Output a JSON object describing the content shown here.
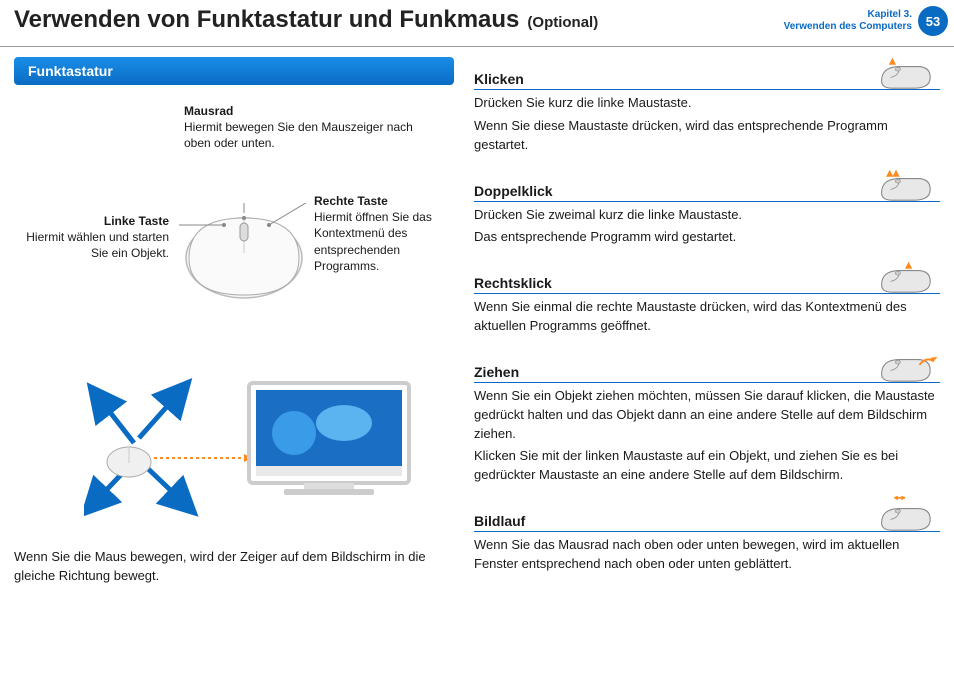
{
  "header": {
    "title": "Verwenden von Funktastatur und Funkmaus",
    "optional": "(Optional)",
    "chapter_line1": "Kapitel 3.",
    "chapter_line2": "Verwenden des Computers",
    "page_number": "53"
  },
  "left": {
    "section_title": "Funktastatur",
    "labels": {
      "mausrad_title": "Mausrad",
      "mausrad_desc": "Hiermit bewegen Sie den Mauszeiger nach oben oder unten.",
      "rechte_title": "Rechte Taste",
      "rechte_desc": "Hiermit öffnen Sie das Kontextmenü des entsprechenden Programms.",
      "linke_title": "Linke Taste",
      "linke_desc": "Hiermit wählen und starten Sie ein Objekt."
    },
    "bottom_text": "Wenn Sie die Maus bewegen, wird der Zeiger auf dem Bildschirm in die gleiche Richtung bewegt."
  },
  "right": {
    "actions": [
      {
        "title": "Klicken",
        "body": [
          "Drücken Sie kurz die linke Maustaste.",
          "Wenn Sie diese Maustaste drücken, wird das entsprechende Programm gestartet."
        ],
        "icon": "click"
      },
      {
        "title": "Doppelklick",
        "body": [
          "Drücken Sie zweimal kurz die linke Maustaste.",
          "Das entsprechende Programm wird gestartet."
        ],
        "icon": "doubleclick"
      },
      {
        "title": "Rechtsklick",
        "body": [
          "Wenn Sie einmal die rechte Maustaste drücken, wird das Kontextmenü des aktuellen Programms geöffnet."
        ],
        "icon": "rightclick"
      },
      {
        "title": "Ziehen",
        "body": [
          "Wenn Sie ein Objekt ziehen möchten, müssen Sie darauf klicken, die Maustaste gedrückt halten und das Objekt dann an eine andere Stelle auf dem Bildschirm ziehen.",
          "Klicken Sie mit der linken Maustaste auf ein Objekt, und ziehen Sie es bei gedrückter Maustaste an eine andere Stelle auf dem Bildschirm."
        ],
        "icon": "drag"
      },
      {
        "title": "Bildlauf",
        "body": [
          "Wenn Sie das Mausrad nach oben oder unten bewegen, wird im aktuellen Fenster entsprechend nach oben oder unten geblättert."
        ],
        "icon": "scroll"
      }
    ]
  },
  "colors": {
    "accent": "#0a6bc2",
    "arrow": "#ff8a1e",
    "mouse_fill": "#e8e8e8",
    "mouse_stroke": "#888"
  }
}
